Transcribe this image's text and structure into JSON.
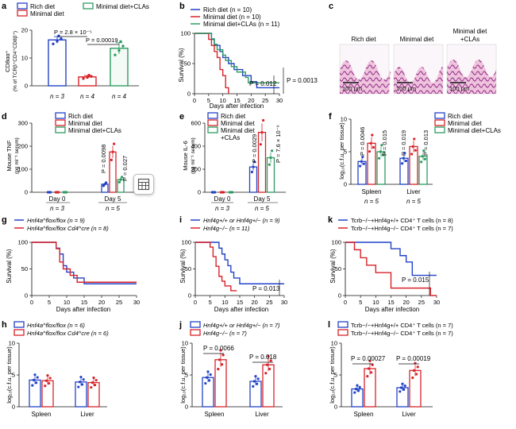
{
  "colors": {
    "rich": "#2343c8",
    "minimal": "#d8232a",
    "cla": "#2e9b62",
    "gray": "#777777"
  },
  "panels": {
    "a": {
      "letter": "a",
      "legend": [
        "Rich diet",
        "Minimal diet",
        "Minimal diet+CLAs"
      ],
      "ylabel1": "CD8αα⁺",
      "ylabel2": "(% of TCRβ⁺CD4⁺CD8β⁺)",
      "p1": "P = 2.8 × 10⁻⁵",
      "p2": "P = 0.00019",
      "n": [
        "n = 3",
        "n = 4",
        "n = 4"
      ]
    },
    "b": {
      "letter": "b",
      "legend": [
        "Rich diet (n = 10)",
        "Minimal diet (n = 10)",
        "Minimal diet+CLAs (n = 11)"
      ],
      "ylabel": "Survival (%)",
      "xlabel": "Days after infection",
      "p1": "P = 0.012",
      "p2": "P = 0.0013"
    },
    "c": {
      "letter": "c",
      "titles": [
        "Rich diet",
        "Minimal diet",
        "Minimal diet\n+CLAs"
      ],
      "scale": "100 μm"
    },
    "d": {
      "letter": "d",
      "legend": [
        "Rich diet",
        "Minimal diet",
        "Minimal diet+CLAs"
      ],
      "ylabel1": "Mouse TNF",
      "ylabel2": "(pg ml⁻¹ serum)",
      "p1": "P = 0.0098",
      "p2": "P = 0.027",
      "groups": [
        "Day 0",
        "Day 5"
      ],
      "n": [
        "n = 3",
        "n = 5"
      ]
    },
    "e": {
      "letter": "e",
      "legend": [
        "Rich diet",
        "Minimal diet",
        "Minimal diet",
        "+CLAs"
      ],
      "ylabel1": "Mouse IL-6",
      "ylabel2": "(pg ml⁻¹ serum)",
      "p1": "P = 0.0029",
      "p2": "P = 7.6 × 10⁻⁶",
      "groups": [
        "Day 0",
        "Day 5"
      ],
      "n": [
        "n = 3",
        "n = 5"
      ]
    },
    "f": {
      "letter": "f",
      "legend": [
        "Rich diet",
        "Minimal diet",
        "Minimal diet+CLAs"
      ],
      "ylabel": "log₁₀(c.f.u. per tissue)",
      "p": [
        "P = 0.0046",
        "P = 0.015",
        "P = 0.019",
        "P = 0.013"
      ],
      "groups": [
        "Spleen",
        "Liver"
      ],
      "n": [
        "n = 5",
        "n = 5"
      ]
    },
    "g": {
      "letter": "g",
      "legend": [
        "Hnf4a^flox/flox (n = 9)",
        "Hnf4a^flox/flox Cd4^cre (n = 8)"
      ],
      "ylabel": "Survival (%)",
      "xlabel": "Days after infection"
    },
    "i": {
      "letter": "i",
      "legend": [
        "Hnf4g+/+ or Hnf4g+/− (n = 9)",
        "Hnf4g−/− (n = 11)"
      ],
      "ylabel": "Survival (%)",
      "xlabel": "Days after infection",
      "p": "P = 0.013"
    },
    "k": {
      "letter": "k",
      "legend": [
        "Tcrb−/−+Hnf4g+/+ CD4⁺ T cells (n = 8)",
        "Tcrb−/−+Hnf4g−/− CD4⁺ T cells (n = 7)"
      ],
      "ylabel": "Survival (%)",
      "xlabel": "Days after infection",
      "p": "P = 0.015"
    },
    "h": {
      "letter": "h",
      "legend": [
        "Hnf4a^flox/flox (n = 6)",
        "Hnf4a^flox/flox Cd4^cre (n = 6)"
      ],
      "ylabel": "log₁₀(c.f.u. per tissue)",
      "groups": [
        "Spleen",
        "Liver"
      ]
    },
    "j": {
      "letter": "j",
      "legend": [
        "Hnf4g+/+ or Hnf4g+/− (n = 7)",
        "Hnf4g−/− (n = 7)"
      ],
      "ylabel": "log₁₀(c.f.u. per tissue)",
      "groups": [
        "Spleen",
        "Liver"
      ],
      "p": [
        "P = 0.0066",
        "P = 0.018"
      ]
    },
    "l": {
      "letter": "l",
      "legend": [
        "Tcrb−/−+Hnf4g+/+ CD4⁺ T cells (n = 7)",
        "Tcrb−/−+Hnf4g−/− CD4⁺ T cells (n = 7)"
      ],
      "ylabel": "log₁₀(c.f.u. per tissue)",
      "groups": [
        "Spleen",
        "Liver"
      ],
      "p": [
        "P = 0.00027",
        "P = 0.00019"
      ]
    }
  },
  "chart_data": [
    {
      "panel": "a",
      "type": "bar",
      "categories": [
        "Rich diet",
        "Minimal diet",
        "Minimal diet+CLAs"
      ],
      "values": [
        16.5,
        3.2,
        13.5
      ],
      "errors": [
        1.2,
        0.5,
        2.0
      ],
      "ylim": [
        0,
        20
      ]
    },
    {
      "panel": "b",
      "type": "line",
      "xlim": [
        0,
        30
      ],
      "ylim": [
        0,
        100
      ],
      "series": [
        {
          "name": "Rich diet (n = 10)",
          "x": [
            0,
            5,
            6,
            7,
            9,
            10,
            12,
            14,
            17,
            20,
            22,
            30
          ],
          "y": [
            100,
            100,
            90,
            80,
            70,
            60,
            50,
            40,
            30,
            20,
            10,
            10
          ]
        },
        {
          "name": "Minimal diet (n = 10)",
          "x": [
            0,
            4,
            5,
            6,
            7,
            8,
            9,
            10,
            11,
            12
          ],
          "y": [
            100,
            100,
            90,
            80,
            70,
            60,
            40,
            30,
            10,
            0
          ]
        },
        {
          "name": "Minimal diet+CLAs (n = 11)",
          "x": [
            0,
            5,
            6,
            7,
            8,
            10,
            11,
            13,
            15,
            18,
            19,
            30
          ],
          "y": [
            100,
            100,
            91,
            82,
            73,
            64,
            55,
            45,
            36,
            27,
            18,
            18
          ]
        }
      ]
    },
    {
      "panel": "d",
      "type": "bar",
      "categories": [
        "Day 0",
        "Day 5"
      ],
      "ylim": [
        0,
        300
      ],
      "series": [
        {
          "name": "Rich diet",
          "values": [
            0,
            35
          ]
        },
        {
          "name": "Minimal diet",
          "values": [
            0,
            175
          ]
        },
        {
          "name": "Minimal diet+CLAs",
          "values": [
            0,
            55
          ]
        }
      ]
    },
    {
      "panel": "e",
      "type": "bar",
      "categories": [
        "Day 0",
        "Day 5"
      ],
      "ylim": [
        0,
        600
      ],
      "series": [
        {
          "name": "Rich diet",
          "values": [
            0,
            220
          ]
        },
        {
          "name": "Minimal diet",
          "values": [
            0,
            520
          ]
        },
        {
          "name": "Minimal diet+CLAs",
          "values": [
            0,
            300
          ]
        }
      ]
    },
    {
      "panel": "f",
      "type": "bar",
      "categories": [
        "Spleen",
        "Liver"
      ],
      "ylim": [
        0,
        10
      ],
      "series": [
        {
          "name": "Rich diet",
          "values": [
            3.5,
            4.0
          ]
        },
        {
          "name": "Minimal diet",
          "values": [
            6.3,
            5.8
          ]
        },
        {
          "name": "Minimal diet+CLAs",
          "values": [
            5.0,
            4.3
          ]
        }
      ]
    },
    {
      "panel": "g",
      "type": "line",
      "xlim": [
        0,
        30
      ],
      "ylim": [
        0,
        100
      ],
      "series": [
        {
          "name": "Hnf4a flox/flox (n = 9)",
          "x": [
            0,
            6,
            7,
            8,
            9,
            10,
            12,
            15,
            30
          ],
          "y": [
            100,
            100,
            89,
            78,
            56,
            44,
            33,
            22,
            22
          ]
        },
        {
          "name": "Hnf4a flox/flox Cd4cre (n = 8)",
          "x": [
            0,
            6,
            7,
            8,
            9,
            11,
            13,
            30
          ],
          "y": [
            100,
            100,
            88,
            63,
            50,
            38,
            25,
            25
          ]
        }
      ]
    },
    {
      "panel": "i",
      "type": "line",
      "xlim": [
        0,
        30
      ],
      "ylim": [
        0,
        100
      ],
      "series": [
        {
          "name": "Hnf4g+/+ or Hnf4g+/− (n = 9)",
          "x": [
            0,
            6,
            8,
            9,
            10,
            11,
            12,
            13,
            15,
            30
          ],
          "y": [
            100,
            100,
            89,
            78,
            67,
            56,
            44,
            33,
            22,
            22
          ]
        },
        {
          "name": "Hnf4g−/− (n = 11)",
          "x": [
            0,
            5,
            6,
            7,
            8,
            9,
            10,
            12,
            14
          ],
          "y": [
            100,
            91,
            73,
            55,
            36,
            27,
            18,
            9,
            9
          ]
        }
      ]
    },
    {
      "panel": "k",
      "type": "line",
      "xlim": [
        0,
        30
      ],
      "ylim": [
        0,
        100
      ],
      "series": [
        {
          "name": "Tcrb−/−+Hnf4g+/+ CD4+ T cells (n = 8)",
          "x": [
            0,
            10,
            15,
            18,
            20,
            22,
            30
          ],
          "y": [
            100,
            100,
            88,
            75,
            63,
            38,
            38
          ]
        },
        {
          "name": "Tcrb−/−+Hnf4g−/− CD4+ T cells (n = 7)",
          "x": [
            0,
            3,
            5,
            7,
            10,
            15,
            20,
            25,
            28,
            30
          ],
          "y": [
            100,
            86,
            71,
            57,
            43,
            14,
            14,
            14,
            0,
            0
          ]
        }
      ]
    },
    {
      "panel": "h",
      "type": "bar",
      "categories": [
        "Spleen",
        "Liver"
      ],
      "ylim": [
        0,
        10
      ],
      "series": [
        {
          "name": "Hnf4a flox/flox (n = 6)",
          "values": [
            4.2,
            3.9
          ]
        },
        {
          "name": "Hnf4a flox/flox Cd4cre (n = 6)",
          "values": [
            4.1,
            3.8
          ]
        }
      ]
    },
    {
      "panel": "j",
      "type": "bar",
      "categories": [
        "Spleen",
        "Liver"
      ],
      "ylim": [
        0,
        10
      ],
      "series": [
        {
          "name": "Hnf4g+/+ or Hnf4g+/− (n = 7)",
          "values": [
            4.6,
            4.0
          ]
        },
        {
          "name": "Hnf4g−/− (n = 7)",
          "values": [
            7.4,
            6.6
          ]
        }
      ]
    },
    {
      "panel": "l",
      "type": "bar",
      "categories": [
        "Spleen",
        "Liver"
      ],
      "ylim": [
        0,
        10
      ],
      "series": [
        {
          "name": "Tcrb−/−+Hnf4g+/+ CD4+ T cells (n = 7)",
          "values": [
            2.8,
            3.0
          ]
        },
        {
          "name": "Tcrb−/−+Hnf4g−/− CD4+ T cells (n = 7)",
          "values": [
            6.0,
            5.7
          ]
        }
      ]
    }
  ]
}
